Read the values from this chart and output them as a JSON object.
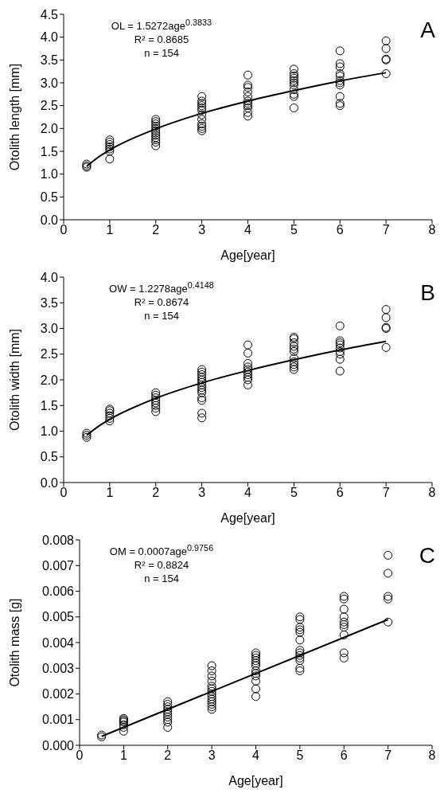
{
  "chart_data": [
    {
      "type": "scatter",
      "xlabel": "Age[year]",
      "ylabel": "Otolith length [mm]",
      "xlim": [
        0,
        8
      ],
      "xticks": [
        0,
        1,
        2,
        3,
        4,
        5,
        6,
        7,
        8
      ],
      "ylim": [
        0,
        4.5
      ],
      "yticks": [
        {
          "value": 0,
          "label": "0.0"
        },
        {
          "value": 0.5,
          "label": "0.5"
        },
        {
          "value": 1,
          "label": "1.0"
        },
        {
          "value": 1.5,
          "label": "1.5"
        },
        {
          "value": 2,
          "label": "2.0"
        },
        {
          "value": 2.5,
          "label": "2.5"
        },
        {
          "value": 3,
          "label": "3.0"
        },
        {
          "value": 3.5,
          "label": "3.5"
        },
        {
          "value": 4,
          "label": "4.0"
        },
        {
          "value": 4.5,
          "label": "4.5"
        }
      ],
      "annotations": [
        "OL = 1.5272age$^{0.3833}$",
        "R² = 0.8685",
        "n = 154",
        "A"
      ],
      "series": [
        {
          "marker": "circle",
          "color": "#000000",
          "x": [
            0.5,
            0.5,
            0.5,
            1,
            1,
            1,
            1,
            1,
            1,
            1,
            2,
            2,
            2,
            2,
            2,
            2,
            2,
            2,
            2,
            2,
            2,
            2,
            3,
            3,
            3,
            3,
            3,
            3,
            3,
            3,
            3,
            3,
            3,
            3,
            4,
            4,
            4,
            4,
            4,
            4,
            4,
            4,
            4,
            4,
            4,
            5,
            5,
            5,
            5,
            5,
            5,
            5,
            5,
            5,
            5,
            5,
            6,
            6,
            6,
            6,
            6,
            6,
            6,
            6,
            6,
            6,
            6,
            7,
            7,
            7,
            7,
            7
          ],
          "values": [
            1.15,
            1.18,
            1.22,
            1.33,
            1.5,
            1.55,
            1.6,
            1.65,
            1.7,
            1.75,
            1.62,
            1.7,
            1.75,
            1.8,
            1.85,
            1.9,
            1.95,
            2.0,
            2.05,
            2.1,
            2.15,
            2.2,
            1.95,
            2.0,
            2.05,
            2.1,
            2.2,
            2.3,
            2.4,
            2.45,
            2.5,
            2.55,
            2.6,
            2.7,
            2.27,
            2.35,
            2.45,
            2.5,
            2.55,
            2.6,
            2.7,
            2.8,
            2.9,
            2.95,
            3.17,
            2.45,
            2.7,
            2.75,
            2.85,
            2.95,
            3.0,
            3.05,
            3.1,
            3.15,
            3.2,
            3.3,
            2.5,
            2.55,
            2.7,
            2.95,
            3.0,
            3.05,
            3.15,
            3.2,
            3.35,
            3.42,
            3.7,
            3.2,
            3.5,
            3.52,
            3.75,
            3.92
          ]
        },
        {
          "type": "line",
          "marker": "none",
          "line_style": "solid",
          "color": "#000000",
          "x": [
            0.5,
            0.75,
            1,
            2,
            3,
            4,
            5,
            6,
            7
          ],
          "values": [
            1.17,
            1.37,
            1.53,
            1.99,
            2.33,
            2.6,
            2.83,
            3.04,
            3.22
          ]
        }
      ]
    },
    {
      "type": "scatter",
      "xlabel": "Age[year]",
      "ylabel": "Otolith width [mm]",
      "xlim": [
        0,
        8
      ],
      "xticks": [
        0,
        1,
        2,
        3,
        4,
        5,
        6,
        7,
        8
      ],
      "ylim": [
        0,
        4
      ],
      "yticks": [
        {
          "value": 0,
          "label": "0.0"
        },
        {
          "value": 0.5,
          "label": "0.5"
        },
        {
          "value": 1,
          "label": "1.0"
        },
        {
          "value": 1.5,
          "label": "1.5"
        },
        {
          "value": 2,
          "label": "2.0"
        },
        {
          "value": 2.5,
          "label": "2.5"
        },
        {
          "value": 3,
          "label": "3.0"
        },
        {
          "value": 3.5,
          "label": "3.5"
        },
        {
          "value": 4,
          "label": "4.0"
        }
      ],
      "annotations": [
        "OW = 1.2278age$^{0.4148}$",
        "R² = 0.8674",
        "n = 154",
        "B"
      ],
      "series": [
        {
          "marker": "circle",
          "color": "#000000",
          "x": [
            0.5,
            0.5,
            0.5,
            1,
            1,
            1,
            1,
            1,
            1,
            2,
            2,
            2,
            2,
            2,
            2,
            2,
            2,
            3,
            3,
            3,
            3,
            3,
            3,
            3,
            3,
            3,
            3,
            3,
            3,
            3,
            3,
            4,
            4,
            4,
            4,
            4,
            4,
            4,
            4,
            4,
            4,
            5,
            5,
            5,
            5,
            5,
            5,
            5,
            5,
            5,
            5,
            5,
            6,
            6,
            6,
            6,
            6,
            6,
            6,
            6,
            6,
            7,
            7,
            7,
            7,
            7
          ],
          "values": [
            0.88,
            0.92,
            0.96,
            1.2,
            1.25,
            1.3,
            1.35,
            1.4,
            1.43,
            1.38,
            1.45,
            1.5,
            1.55,
            1.6,
            1.65,
            1.7,
            1.75,
            1.26,
            1.35,
            1.6,
            1.65,
            1.75,
            1.8,
            1.85,
            1.9,
            1.95,
            2.0,
            2.05,
            2.1,
            2.15,
            2.2,
            1.9,
            2.0,
            2.05,
            2.1,
            2.15,
            2.2,
            2.25,
            2.32,
            2.52,
            2.68,
            2.2,
            2.25,
            2.3,
            2.35,
            2.42,
            2.55,
            2.6,
            2.65,
            2.72,
            2.8,
            2.83,
            2.17,
            2.4,
            2.5,
            2.55,
            2.62,
            2.68,
            2.72,
            2.76,
            3.05,
            2.63,
            3.0,
            3.02,
            3.21,
            3.37
          ]
        },
        {
          "type": "line",
          "marker": "none",
          "line_style": "solid",
          "color": "#000000",
          "x": [
            0.5,
            0.75,
            1,
            2,
            3,
            4,
            5,
            6,
            7
          ],
          "values": [
            0.92,
            1.09,
            1.23,
            1.64,
            1.94,
            2.18,
            2.39,
            2.58,
            2.75
          ]
        }
      ]
    },
    {
      "type": "scatter",
      "xlabel": "Age[year]",
      "ylabel": "Otolith mass [g]",
      "xlim": [
        0,
        8
      ],
      "xticks": [
        0,
        1,
        2,
        3,
        4,
        5,
        6,
        7,
        8
      ],
      "ylim": [
        0,
        0.008
      ],
      "yticks": [
        {
          "value": 0,
          "label": "0.000"
        },
        {
          "value": 0.001,
          "label": "0.001"
        },
        {
          "value": 0.002,
          "label": "0.002"
        },
        {
          "value": 0.003,
          "label": "0.003"
        },
        {
          "value": 0.004,
          "label": "0.004"
        },
        {
          "value": 0.005,
          "label": "0.005"
        },
        {
          "value": 0.006,
          "label": "0.006"
        },
        {
          "value": 0.007,
          "label": "0.007"
        },
        {
          "value": 0.008,
          "label": "0.008"
        }
      ],
      "annotations": [
        "OM = 0.0007age$^{0.9756}$",
        "R² = 0.8824",
        "n = 154",
        "C"
      ],
      "series": [
        {
          "marker": "circle",
          "color": "#000000",
          "x": [
            0.5,
            0.5,
            1,
            1,
            1,
            1,
            1,
            1,
            1,
            2,
            2,
            2,
            2,
            2,
            2,
            2,
            2,
            2,
            2,
            3,
            3,
            3,
            3,
            3,
            3,
            3,
            3,
            3,
            3,
            3,
            3,
            3,
            3,
            4,
            4,
            4,
            4,
            4,
            4,
            4,
            4,
            4,
            4,
            4,
            4,
            5,
            5,
            5,
            5,
            5,
            5,
            5,
            5,
            5,
            5,
            5,
            5,
            5,
            6,
            6,
            6,
            6,
            6,
            6,
            6,
            6,
            6,
            6,
            7,
            7,
            7,
            7,
            7
          ],
          "values": [
            0.00033,
            0.0004,
            0.00055,
            0.0007,
            0.0008,
            0.0009,
            0.00095,
            0.001,
            0.00105,
            0.0007,
            0.0009,
            0.001,
            0.0011,
            0.0012,
            0.0013,
            0.0014,
            0.0015,
            0.0016,
            0.0017,
            0.0014,
            0.0015,
            0.0016,
            0.0017,
            0.0018,
            0.0019,
            0.002,
            0.0021,
            0.0022,
            0.0023,
            0.0025,
            0.0027,
            0.0029,
            0.0031,
            0.0019,
            0.0022,
            0.0025,
            0.0027,
            0.0028,
            0.0029,
            0.0031,
            0.0032,
            0.0033,
            0.0034,
            0.0035,
            0.0036,
            0.0029,
            0.003,
            0.0033,
            0.0034,
            0.0035,
            0.0036,
            0.0037,
            0.0041,
            0.0044,
            0.0045,
            0.0046,
            0.0049,
            0.005,
            0.0034,
            0.0036,
            0.0043,
            0.0046,
            0.0047,
            0.0048,
            0.005,
            0.0053,
            0.0057,
            0.0058,
            0.0048,
            0.0057,
            0.0058,
            0.0067,
            0.0074
          ]
        },
        {
          "type": "line",
          "marker": "none",
          "line_style": "solid",
          "color": "#000000",
          "x": [
            0.5,
            7
          ],
          "values": [
            0.00035,
            0.0049
          ]
        }
      ]
    }
  ]
}
